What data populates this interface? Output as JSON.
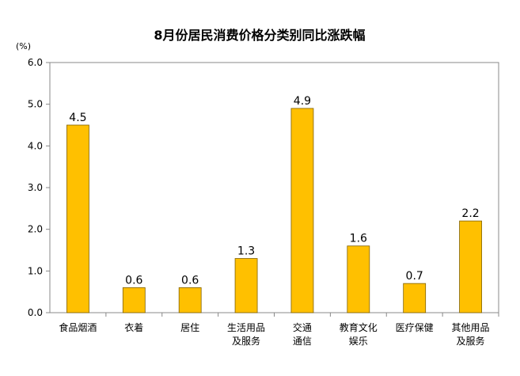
{
  "chart_data": {
    "type": "bar",
    "title": "8月份居民消费价格分类别同比涨跌幅",
    "unit_label": "(%)",
    "xlabel": "",
    "ylabel": "",
    "ylim": [
      0,
      6
    ],
    "y_ticks": [
      "0.0",
      "1.0",
      "2.0",
      "3.0",
      "4.0",
      "5.0",
      "6.0"
    ],
    "categories": [
      [
        "食品烟酒"
      ],
      [
        "衣着"
      ],
      [
        "居住"
      ],
      [
        "生活用品",
        "及服务"
      ],
      [
        "交通",
        "通信"
      ],
      [
        "教育文化",
        "娱乐"
      ],
      [
        "医疗保健"
      ],
      [
        "其他用品",
        "及服务"
      ]
    ],
    "values": [
      4.5,
      0.6,
      0.6,
      1.3,
      4.9,
      1.6,
      0.7,
      2.2
    ],
    "data_labels": [
      "4.5",
      "0.6",
      "0.6",
      "1.3",
      "4.9",
      "1.6",
      "0.7",
      "2.2"
    ],
    "grid": false,
    "legend": "none",
    "bar_color": "#FFC000",
    "bar_edge_color": "#7F6000"
  }
}
